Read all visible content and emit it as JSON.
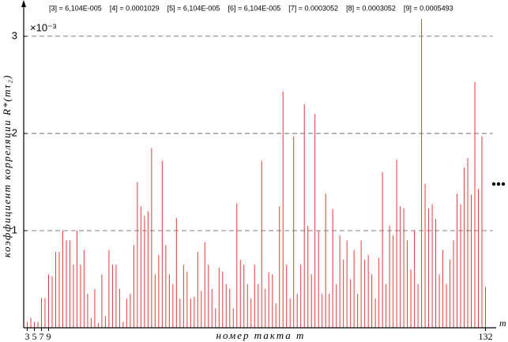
{
  "chart_data": {
    "type": "stem",
    "y_label": "коэффициент корреляции R*(mτ₂)",
    "x_label": "номер такта m",
    "x_axis_end_label": "m",
    "multiplier": "×10⁻³",
    "annotations": [
      "[3] = 6,104E-005",
      "[4] = 0.0001029",
      "[5] = 6,104E-005",
      "[6] = 6,104E-005",
      "[7] = 0.0003052",
      "[8] = 0.0003052",
      "[9] = 0.0005493"
    ],
    "color": "#e03c3c",
    "grid": true,
    "xlim": [
      2,
      134
    ],
    "xticks": [
      3,
      5,
      7,
      9,
      132
    ],
    "ylim": [
      0,
      3.3
    ],
    "yticks": [
      1,
      2,
      3
    ],
    "x": [
      3,
      4,
      5,
      6,
      7,
      8,
      9,
      10,
      11,
      12,
      13,
      14,
      15,
      16,
      17,
      18,
      19,
      20,
      21,
      22,
      23,
      24,
      25,
      26,
      27,
      28,
      29,
      30,
      31,
      32,
      33,
      34,
      35,
      36,
      37,
      38,
      39,
      40,
      41,
      42,
      43,
      44,
      45,
      46,
      47,
      48,
      49,
      50,
      51,
      52,
      53,
      54,
      55,
      56,
      57,
      58,
      59,
      60,
      61,
      62,
      63,
      64,
      65,
      66,
      67,
      68,
      69,
      70,
      71,
      72,
      73,
      74,
      75,
      76,
      77,
      78,
      79,
      80,
      81,
      82,
      83,
      84,
      85,
      86,
      87,
      88,
      89,
      90,
      91,
      92,
      93,
      94,
      95,
      96,
      97,
      98,
      99,
      100,
      101,
      102,
      103,
      104,
      105,
      106,
      107,
      108,
      109,
      110,
      111,
      112,
      113,
      114,
      115,
      116,
      117,
      118,
      119,
      120,
      121,
      122,
      123,
      124,
      125,
      126,
      127,
      128,
      129,
      130,
      131,
      132
    ],
    "values": [
      0.061,
      0.103,
      0.061,
      0.061,
      0.305,
      0.305,
      0.549,
      0.53,
      0.78,
      0.78,
      1.0,
      0.9,
      0.9,
      0.65,
      1.0,
      0.65,
      0.8,
      0.35,
      0.1,
      0.4,
      0.05,
      0.55,
      0.12,
      0.8,
      0.65,
      0.65,
      0.4,
      0.06,
      0.3,
      0.35,
      0.85,
      1.5,
      1.25,
      1.15,
      1.2,
      1.85,
      0.55,
      0.75,
      1.72,
      0.85,
      0.55,
      0.45,
      1.13,
      0.3,
      0.65,
      0.58,
      0.3,
      0.32,
      0.78,
      0.38,
      0.88,
      0.65,
      0.4,
      0.2,
      0.62,
      0.58,
      0.45,
      0.4,
      0.2,
      1.28,
      0.7,
      0.65,
      0.45,
      0.3,
      0.65,
      0.45,
      1.72,
      0.4,
      0.57,
      0.55,
      0.25,
      1.25,
      2.43,
      0.65,
      0.3,
      1.97,
      0.35,
      0.65,
      2.3,
      1.05,
      0.55,
      2.2,
      1.0,
      0.35,
      1.38,
      0.35,
      1.22,
      0.45,
      0.95,
      0.7,
      0.9,
      0.5,
      0.8,
      0.35,
      0.9,
      0.7,
      0.75,
      0.55,
      0.3,
      0.72,
      1.6,
      0.45,
      1.05,
      0.95,
      1.73,
      1.25,
      1.23,
      0.9,
      0.6,
      1.0,
      0.45,
      3.18,
      1.48,
      1.23,
      1.27,
      1.12,
      0.55,
      0.8,
      0.45,
      0.7,
      0.9,
      1.38,
      1.27,
      1.65,
      1.75,
      1.37,
      2.53,
      1.43,
      1.97,
      0.42
    ]
  }
}
